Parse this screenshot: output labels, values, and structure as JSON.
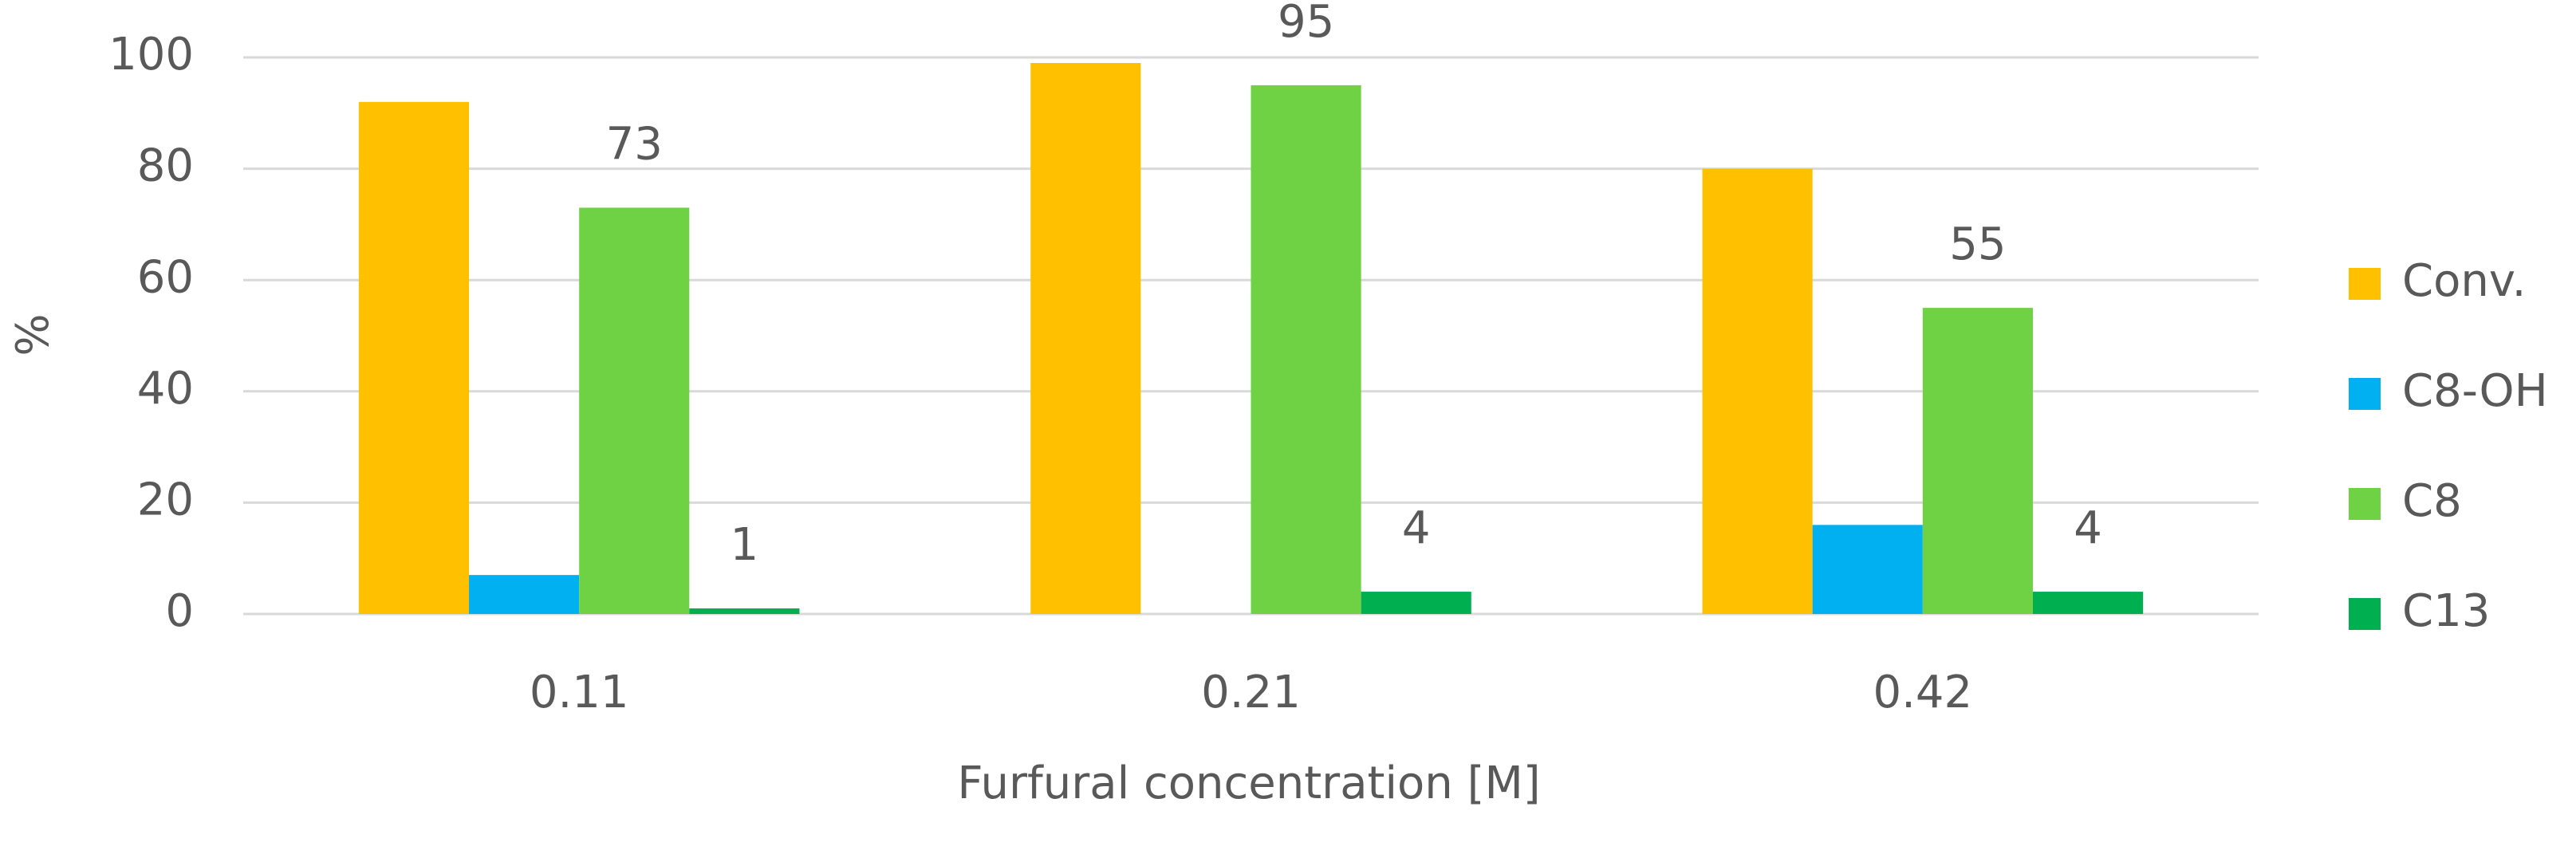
{
  "chart_data": {
    "type": "bar",
    "y_label": "%",
    "x_label": "Furfural concentration [M]",
    "categories": [
      "0.11",
      "0.21",
      "0.42"
    ],
    "series": [
      {
        "name": "Conv.",
        "color": "#ffc000",
        "values": [
          92,
          99,
          80
        ],
        "show_labels": false
      },
      {
        "name": "C8-OH",
        "color": "#00b0f0",
        "values": [
          7,
          0,
          16
        ],
        "show_labels": false
      },
      {
        "name": "C8",
        "color": "#6fd244",
        "values": [
          73,
          95,
          55
        ],
        "show_labels": true
      },
      {
        "name": "C13",
        "color": "#00b050",
        "values": [
          1,
          4,
          4
        ],
        "show_labels": true
      }
    ],
    "ylim": [
      0,
      100
    ],
    "yticks": [
      0,
      20,
      40,
      60,
      80,
      100
    ],
    "grid": true,
    "legend": "right"
  }
}
